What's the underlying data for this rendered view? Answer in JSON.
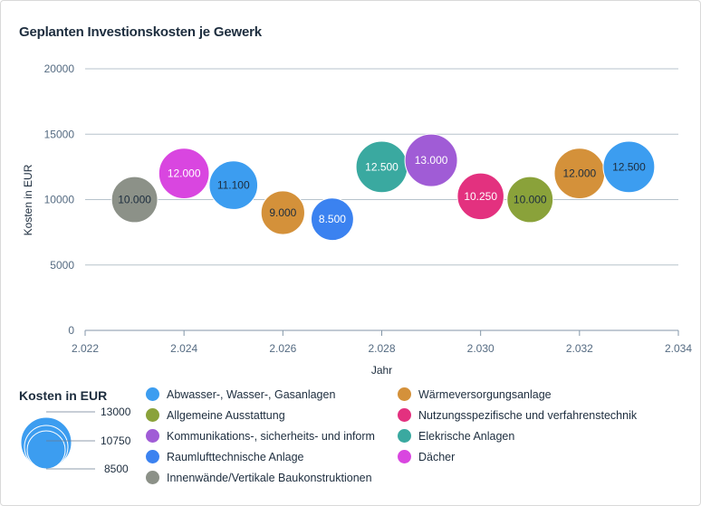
{
  "chart_data": {
    "type": "bubble",
    "title": "Geplanten Investionskosten je Gewerk",
    "xlabel": "Jahr",
    "ylabel": "Kosten in EUR",
    "xlim": [
      2.022,
      2.034
    ],
    "ylim": [
      0,
      20000
    ],
    "x_ticks": [
      2.022,
      2.024,
      2.026,
      2.028,
      2.03,
      2.032,
      2.034
    ],
    "x_tick_labels": [
      "2.022",
      "2.024",
      "2.026",
      "2.028",
      "2.030",
      "2.032",
      "2.034"
    ],
    "y_ticks": [
      0,
      5000,
      10000,
      15000,
      20000
    ],
    "y_tick_labels": [
      "0",
      "5000",
      "10000",
      "15000",
      "20000"
    ],
    "points": [
      {
        "series": "Innenwände/Vertikale Baukonstruktionen",
        "x": 2.023,
        "y": 10000,
        "size": 10000,
        "label": "10.000",
        "label_color": "#1d2d3e"
      },
      {
        "series": "Dächer",
        "x": 2.024,
        "y": 12000,
        "size": 12000,
        "label": "12.000",
        "label_color": "#ffffff"
      },
      {
        "series": "Abwasser-, Wasser-, Gasanlagen",
        "x": 2.025,
        "y": 11100,
        "size": 11100,
        "label": "11.100",
        "label_color": "#1d2d3e"
      },
      {
        "series": "Wärmeversorgungsanlage",
        "x": 2.026,
        "y": 9000,
        "size": 9000,
        "label": "9.000",
        "label_color": "#1d2d3e"
      },
      {
        "series": "Raumlufttechnische Anlage",
        "x": 2.027,
        "y": 8500,
        "size": 8500,
        "label": "8.500",
        "label_color": "#ffffff"
      },
      {
        "series": "Elekrische Anlagen",
        "x": 2.028,
        "y": 12500,
        "size": 12500,
        "label": "12.500",
        "label_color": "#ffffff"
      },
      {
        "series": "Kommunikations-, sicherheits- und inform",
        "x": 2.029,
        "y": 13000,
        "size": 13000,
        "label": "13.000",
        "label_color": "#ffffff"
      },
      {
        "series": "Nutzungsspezifische und verfahrenstechnik",
        "x": 2.03,
        "y": 10250,
        "size": 10250,
        "label": "10.250",
        "label_color": "#ffffff"
      },
      {
        "series": "Allgemeine Ausstattung",
        "x": 2.031,
        "y": 10000,
        "size": 10000,
        "label": "10.000",
        "label_color": "#1d2d3e"
      },
      {
        "series": "Wärmeversorgungsanlage",
        "x": 2.032,
        "y": 12000,
        "size": 12000,
        "label": "12.000",
        "label_color": "#1d2d3e"
      },
      {
        "series": "Abwasser-, Wasser-, Gasanlagen",
        "x": 2.033,
        "y": 12500,
        "size": 12500,
        "label": "12.500",
        "label_color": "#1d2d3e"
      }
    ],
    "size_legend": {
      "title": "Kosten in EUR",
      "values": [
        "13000",
        "10750",
        "8500"
      ]
    },
    "legend": [
      {
        "name": "Abwasser-, Wasser-, Gasanlagen",
        "color": "#3c9df0"
      },
      {
        "name": "Wärmeversorgungsanlage",
        "color": "#d4913a"
      },
      {
        "name": "Allgemeine Ausstattung",
        "color": "#8aa23a"
      },
      {
        "name": "Nutzungsspezifische und verfahrenstechnik",
        "color": "#e3317f"
      },
      {
        "name": "Kommunikations-, sicherheits- und inform",
        "color": "#a05cd6"
      },
      {
        "name": "Elekrische Anlagen",
        "color": "#3aa9a0"
      },
      {
        "name": "Raumlufttechnische Anlage",
        "color": "#3b82f0"
      },
      {
        "name": "Dächer",
        "color": "#d946e0"
      },
      {
        "name": "Innenwände/Vertikale Baukonstruktionen",
        "color": "#8c9188"
      }
    ]
  }
}
